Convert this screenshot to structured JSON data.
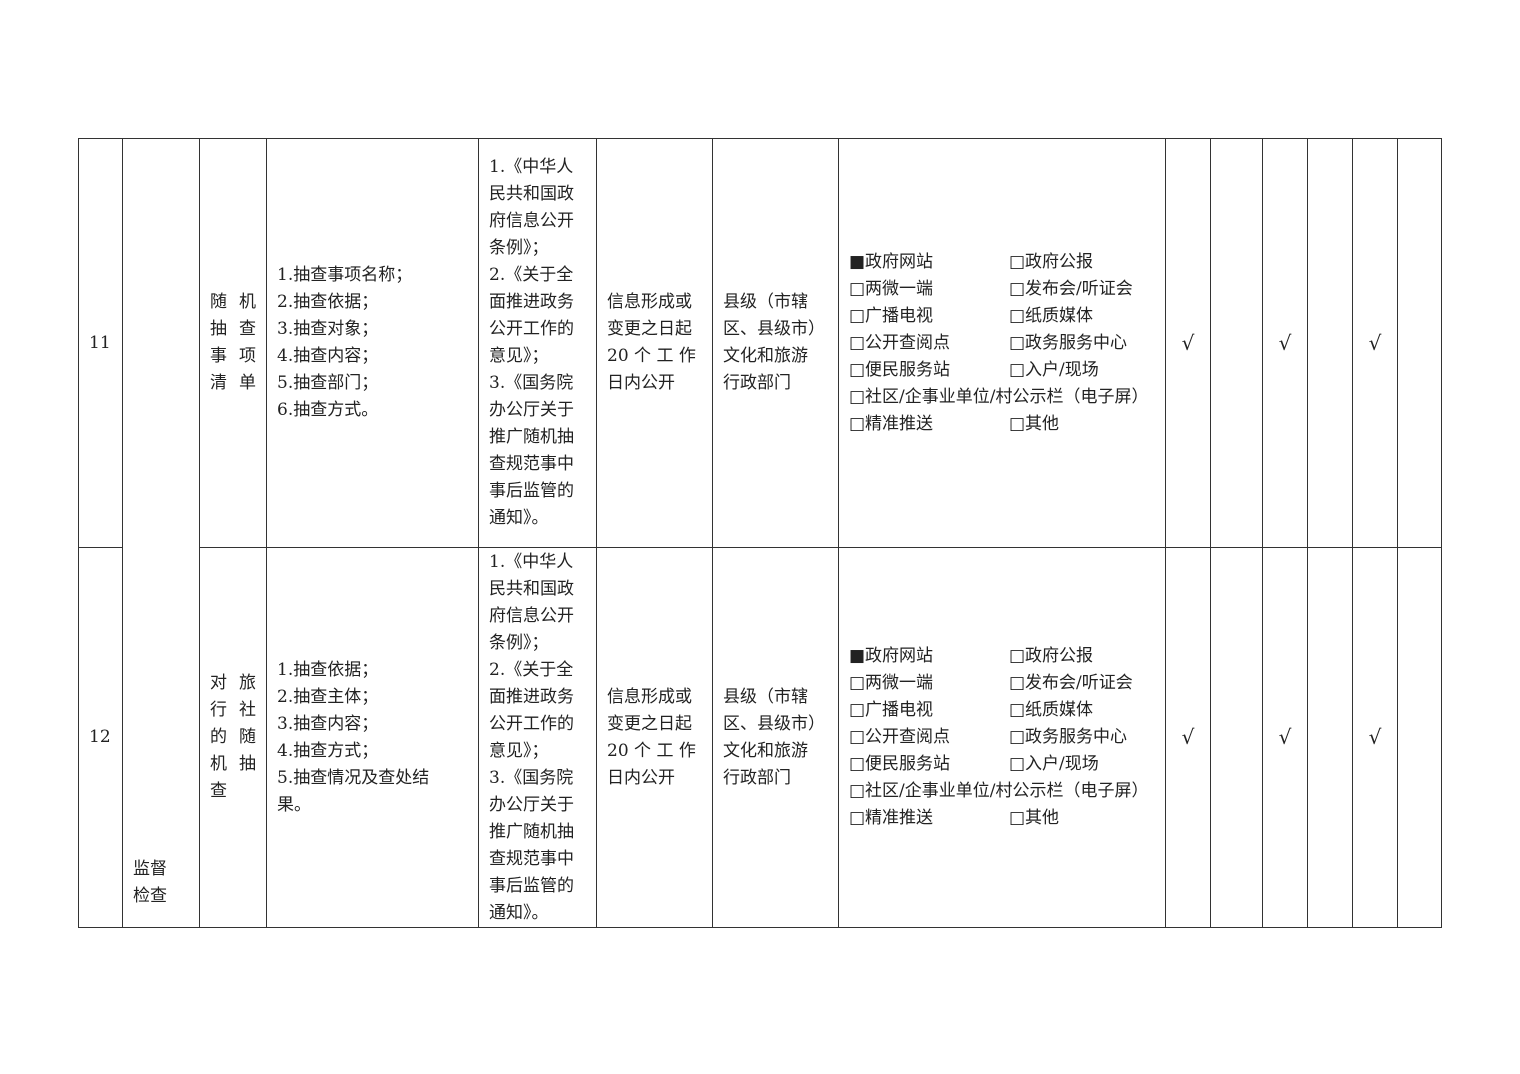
{
  "category": "监督\n检查",
  "rows": [
    {
      "no": "11",
      "item": "随机\n抽查\n事项\n清单",
      "content": "1.抽查事项名称；\n2.抽查依据；\n3.抽查对象；\n4.抽查内容；\n5.抽查部门；\n6.抽查方式。",
      "basis": "1.《中华人\n民共和国政\n府信息公开\n条例》；\n2.《关于全\n面推进政务\n公开工作的\n意见》；\n3.《国务院\n办公厅关于\n推广随机抽\n查规范事中\n事后监管的\n通知》。",
      "time": "信息形成或\n变更之日起\n20 个 工 作\n日内公开",
      "subject": "县级（市辖\n区、县级市）\n文化和旅游\n行政部门",
      "channels": [
        "■政府网站",
        "□政府公报",
        "□两微一端",
        "□发布会/听证会",
        "□广播电视",
        "□纸质媒体",
        "□公开查阅点",
        "□政务服务中心",
        "□便民服务站",
        "□入户/现场",
        "□社区/企事业单位/村公示栏（电子屏）",
        "□精准推送",
        "□其他"
      ],
      "marks": [
        "√",
        "",
        "√",
        "",
        "√",
        ""
      ]
    },
    {
      "no": "12",
      "item": "对旅\n行社\n的随\n机抽\n查",
      "content": "1.抽查依据；\n2.抽查主体；\n3.抽查内容；\n4.抽查方式；\n5.抽查情况及查处结\n果。",
      "basis": "1.《中华人\n民共和国政\n府信息公开\n条例》；\n2.《关于全\n面推进政务\n公开工作的\n意见》；\n3.《国务院\n办公厅关于\n推广随机抽\n查规范事中\n事后监管的\n通知》。",
      "time": "信息形成或\n变更之日起\n20 个 工 作\n日内公开",
      "subject": "县级（市辖\n区、县级市）\n文化和旅游\n行政部门",
      "channels": [
        "■政府网站",
        "□政府公报",
        "□两微一端",
        "□发布会/听证会",
        "□广播电视",
        "□纸质媒体",
        "□公开查阅点",
        "□政务服务中心",
        "□便民服务站",
        "□入户/现场",
        "□社区/企事业单位/村公示栏（电子屏）",
        "□精准推送",
        "□其他"
      ],
      "marks": [
        "√",
        "",
        "√",
        "",
        "√",
        ""
      ]
    }
  ]
}
